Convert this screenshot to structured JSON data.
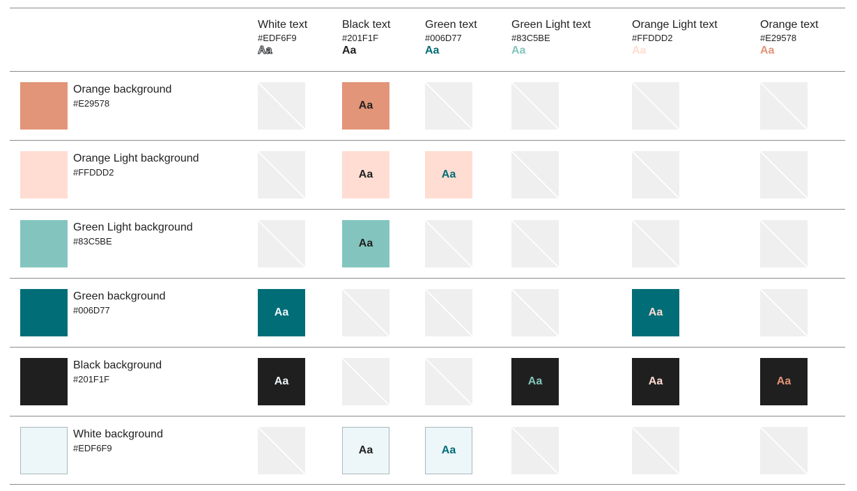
{
  "columns": [
    {
      "name": "White text",
      "hex": "#EDF6F9",
      "sample": "Aa",
      "color": "#EDF6F9"
    },
    {
      "name": "Black text",
      "hex": "#201F1F",
      "sample": "Aa",
      "color": "#201F1F"
    },
    {
      "name": "Green text",
      "hex": "#006D77",
      "sample": "Aa",
      "color": "#006D77"
    },
    {
      "name": "Green Light text",
      "hex": "#83C5BE",
      "sample": "Aa",
      "color": "#83C5BE"
    },
    {
      "name": "Orange Light text",
      "hex": "#FFDDD2",
      "sample": "Aa",
      "color": "#FFDDD2"
    },
    {
      "name": "Orange text",
      "hex": "#E29578",
      "sample": "Aa",
      "color": "#E29578"
    }
  ],
  "rows": [
    {
      "name": "Orange background",
      "hex": "#E29578",
      "color": "#E29578",
      "cells": [
        null,
        "Aa",
        null,
        null,
        null,
        null
      ]
    },
    {
      "name": "Orange Light background",
      "hex": "#FFDDD2",
      "color": "#FFDDD2",
      "cells": [
        null,
        "Aa",
        "Aa",
        null,
        null,
        null
      ]
    },
    {
      "name": "Green Light background",
      "hex": "#83C5BE",
      "color": "#83C5BE",
      "cells": [
        null,
        "Aa",
        null,
        null,
        null,
        null
      ]
    },
    {
      "name": "Green background",
      "hex": "#006D77",
      "color": "#006D77",
      "cells": [
        "Aa",
        null,
        null,
        null,
        "Aa",
        null
      ]
    },
    {
      "name": "Black background",
      "hex": "#201F1F",
      "color": "#201F1F",
      "cells": [
        "Aa",
        null,
        null,
        "Aa",
        "Aa",
        "Aa"
      ]
    },
    {
      "name": "White background",
      "hex": "#EDF6F9",
      "color": "#EDF6F9",
      "cells": [
        null,
        "Aa",
        "Aa",
        null,
        null,
        null
      ]
    }
  ],
  "colors": {
    "not_accessible_fill": "#EFEFEF",
    "rule": "#8A8A8A",
    "light_swatch_border": "#AAB8BC"
  }
}
